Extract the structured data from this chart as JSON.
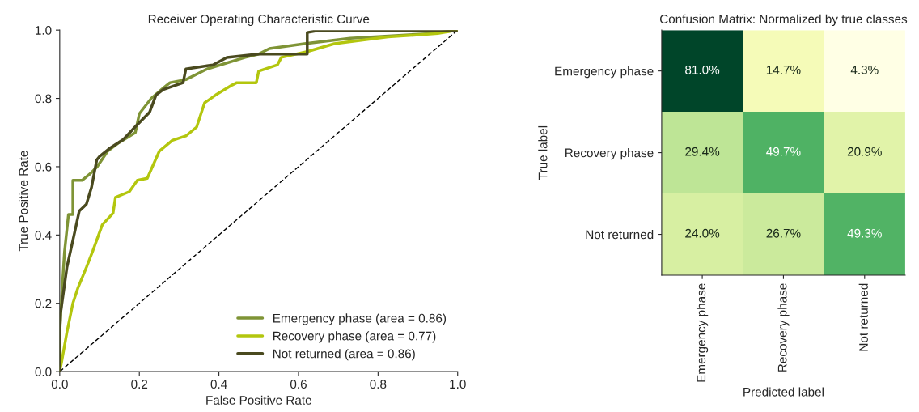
{
  "chart_data": [
    {
      "type": "line",
      "title": "Receiver Operating Characteristic Curve",
      "xlabel": "False Positive Rate",
      "ylabel": "True Positive Rate",
      "xlim": [
        0,
        1
      ],
      "ylim": [
        0,
        1
      ],
      "xticks": [
        {
          "value": 0,
          "label": "0.0"
        },
        {
          "value": 0.2,
          "label": "0.2"
        },
        {
          "value": 0.4,
          "label": "0.4"
        },
        {
          "value": 0.6,
          "label": "0.6"
        },
        {
          "value": 0.8,
          "label": "0.8"
        },
        {
          "value": 1,
          "label": "1.0"
        }
      ],
      "yticks": [
        {
          "value": 0,
          "label": "0.0"
        },
        {
          "value": 0.2,
          "label": "0.2"
        },
        {
          "value": 0.4,
          "label": "0.4"
        },
        {
          "value": 0.6,
          "label": "0.6"
        },
        {
          "value": 0.8,
          "label": "0.8"
        },
        {
          "value": 1,
          "label": "1.0"
        }
      ],
      "legend": "bottom right",
      "grid": false,
      "series": [
        {
          "name": "Emergency phase (area = 0.86)",
          "color": "#7f9436",
          "x": [
            0,
            0,
            0.005,
            0.012,
            0.022,
            0.033,
            0.033,
            0.056,
            0.056,
            0.077,
            0.094,
            0.12,
            0.148,
            0.19,
            0.2,
            0.23,
            0.26,
            0.277,
            0.317,
            0.37,
            0.466,
            0.5,
            0.527,
            0.615,
            0.73,
            0.93,
            1
          ],
          "values": [
            0,
            0.12,
            0.22,
            0.35,
            0.46,
            0.46,
            0.56,
            0.56,
            0.56,
            0.58,
            0.6,
            0.645,
            0.67,
            0.7,
            0.755,
            0.8,
            0.83,
            0.846,
            0.855,
            0.886,
            0.92,
            0.93,
            0.946,
            0.96,
            0.976,
            0.99,
            1
          ]
        },
        {
          "name": "Recovery phase (area = 0.77)",
          "color": "#b3c60e",
          "x": [
            0,
            0.005,
            0.018,
            0.033,
            0.046,
            0.067,
            0.083,
            0.107,
            0.134,
            0.14,
            0.175,
            0.195,
            0.22,
            0.25,
            0.283,
            0.317,
            0.344,
            0.364,
            0.392,
            0.433,
            0.445,
            0.494,
            0.5,
            0.547,
            0.557,
            0.622,
            0.69,
            0.825,
            0.95,
            1
          ],
          "values": [
            0,
            0.03,
            0.115,
            0.2,
            0.246,
            0.305,
            0.353,
            0.43,
            0.464,
            0.51,
            0.527,
            0.56,
            0.566,
            0.645,
            0.677,
            0.69,
            0.716,
            0.787,
            0.81,
            0.839,
            0.846,
            0.846,
            0.88,
            0.898,
            0.92,
            0.937,
            0.96,
            0.98,
            0.99,
            1
          ]
        },
        {
          "name": "Not returned (area = 0.86)",
          "color": "#4a4a1f",
          "x": [
            0,
            0,
            0.002,
            0.018,
            0.036,
            0.049,
            0.067,
            0.08,
            0.093,
            0.1,
            0.127,
            0.16,
            0.189,
            0.226,
            0.242,
            0.26,
            0.31,
            0.317,
            0.385,
            0.42,
            0.5,
            0.622,
            0.622,
            0.656,
            1
          ],
          "values": [
            0,
            0.097,
            0.17,
            0.305,
            0.4,
            0.47,
            0.49,
            0.54,
            0.62,
            0.63,
            0.655,
            0.68,
            0.716,
            0.76,
            0.81,
            0.826,
            0.846,
            0.886,
            0.898,
            0.92,
            0.93,
            0.93,
            0.993,
            1,
            1
          ]
        },
        {
          "type": "line",
          "color": "#000000",
          "line_style": "dashed",
          "x": [
            0,
            1
          ],
          "values": [
            0,
            1
          ]
        }
      ]
    },
    {
      "type": "heatmap",
      "title": "Confusion Matrix: Normalized by true classes",
      "xlabel": "Predicted label",
      "ylabel": "True label",
      "categories": [
        "Emergency phase",
        "Recovery phase",
        "Not returned"
      ],
      "y_categories": [
        "Emergency phase",
        "Recovery phase",
        "Not returned"
      ],
      "cells": [
        [
          81.0,
          14.7,
          4.3
        ],
        [
          29.4,
          49.7,
          20.9
        ],
        [
          24.0,
          26.7,
          49.3
        ]
      ],
      "cell_labels": [
        [
          "81.0%",
          "14.7%",
          "4.3%"
        ],
        [
          "29.4%",
          "49.7%",
          "20.9%"
        ],
        [
          "24.0%",
          "26.7%",
          "49.3%"
        ]
      ]
    }
  ]
}
